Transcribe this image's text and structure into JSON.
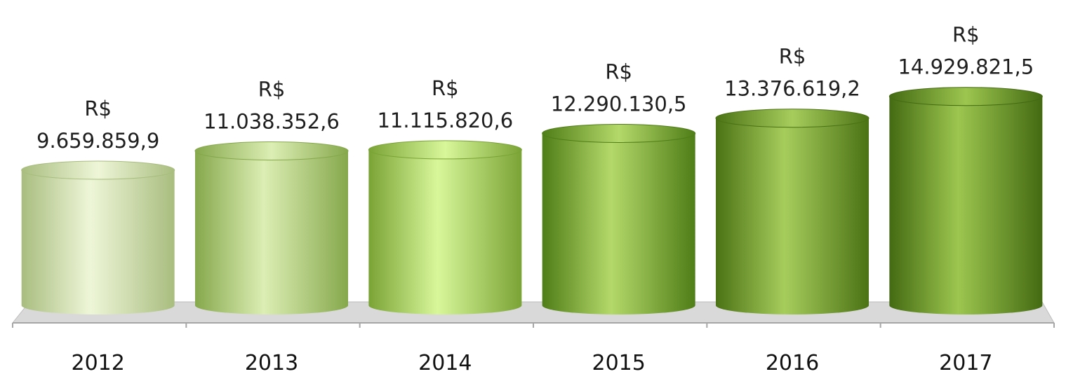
{
  "chart_data": {
    "type": "bar",
    "style": "3d-cylinder",
    "categories": [
      "2012",
      "2013",
      "2014",
      "2015",
      "2016",
      "2017"
    ],
    "values": [
      9659859.9,
      11038352.6,
      11115820.6,
      12290130.5,
      13376619.2,
      14929821.5
    ],
    "data_labels": [
      [
        "R$",
        "9.659.859,9"
      ],
      [
        "R$",
        "11.038.352,6"
      ],
      [
        "R$",
        "11.115.820,6"
      ],
      [
        "R$",
        "12.290.130,5"
      ],
      [
        "R$",
        "13.376.619,2"
      ],
      [
        "R$",
        "14.929.821,5"
      ]
    ],
    "colors": [
      {
        "dark": "#a9bd7f",
        "light": "#eef6d8"
      },
      {
        "dark": "#86a84c",
        "light": "#dceeb4"
      },
      {
        "dark": "#7aa335",
        "light": "#d8f79a"
      },
      {
        "dark": "#4f7d17",
        "light": "#b4d96a"
      },
      {
        "dark": "#4b7214",
        "light": "#a6cd5c"
      },
      {
        "dark": "#446a12",
        "light": "#9cc64f"
      }
    ],
    "floor_color": "#d9d9d9",
    "grid": false,
    "legend": "none",
    "xlabel": "",
    "ylabel": ""
  }
}
